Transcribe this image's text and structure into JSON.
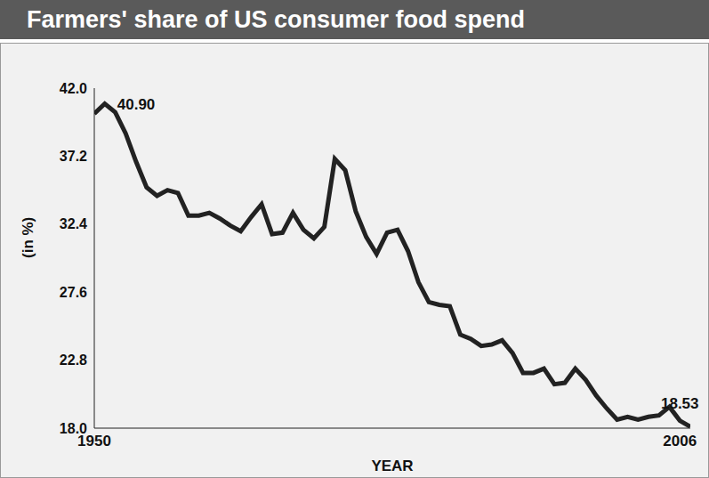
{
  "chart_data": {
    "type": "line",
    "title": "Farmers' share of US consumer food spend",
    "x_label": "YEAR",
    "y_label": "(in %)",
    "x": [
      1950,
      1951,
      1952,
      1953,
      1954,
      1955,
      1956,
      1957,
      1958,
      1959,
      1960,
      1961,
      1962,
      1963,
      1964,
      1965,
      1966,
      1967,
      1968,
      1969,
      1970,
      1971,
      1972,
      1973,
      1974,
      1975,
      1976,
      1977,
      1978,
      1979,
      1980,
      1981,
      1982,
      1983,
      1984,
      1985,
      1986,
      1987,
      1988,
      1989,
      1990,
      1991,
      1992,
      1993,
      1994,
      1995,
      1996,
      1997,
      1998,
      1999,
      2000,
      2001,
      2002,
      2003,
      2004,
      2005,
      2006,
      2007
    ],
    "values": [
      40.2,
      40.9,
      40.3,
      38.8,
      36.8,
      35.0,
      34.4,
      34.8,
      34.6,
      33.0,
      33.0,
      33.2,
      32.8,
      32.3,
      31.9,
      32.9,
      33.8,
      31.7,
      31.8,
      33.2,
      32.0,
      31.4,
      32.2,
      37.0,
      36.2,
      33.3,
      31.5,
      30.3,
      31.8,
      32.0,
      30.5,
      28.3,
      26.9,
      26.7,
      26.6,
      24.6,
      24.3,
      23.8,
      23.9,
      24.2,
      23.3,
      21.9,
      21.9,
      22.2,
      21.1,
      21.2,
      22.2,
      21.4,
      20.3,
      19.4,
      18.6,
      18.8,
      18.6,
      18.8,
      18.9,
      19.5,
      18.53,
      18.1
    ],
    "color": "#222222",
    "xlim": [
      1950,
      2007
    ],
    "xticks": [
      1950,
      2006
    ],
    "ylim": [
      18,
      42
    ],
    "yticks": [
      {
        "value": 18,
        "label": "18.0"
      },
      {
        "value": 22.8,
        "label": "22.8"
      },
      {
        "value": 27.6,
        "label": "27.6"
      },
      {
        "value": 32.4,
        "label": "32.4"
      },
      {
        "value": 37.2,
        "label": "37.2"
      },
      {
        "value": 42,
        "label": "42.0"
      }
    ],
    "grid": false,
    "annotations": [
      {
        "x": 1951,
        "y": 40.9,
        "label": "40.90"
      },
      {
        "x": 2006,
        "y": 18.53,
        "label": "18.53"
      }
    ]
  }
}
